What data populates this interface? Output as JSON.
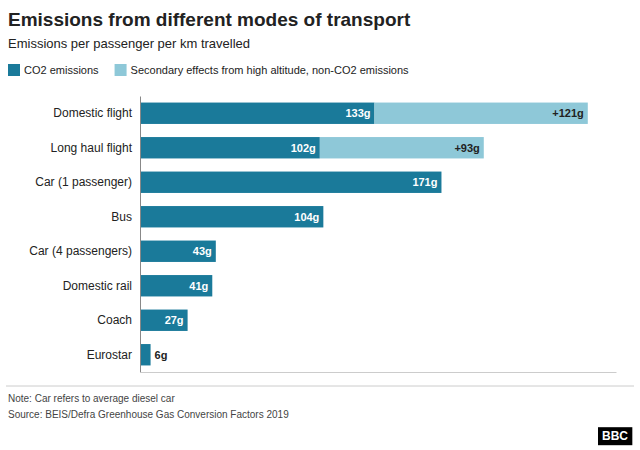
{
  "chart_data": {
    "type": "bar",
    "orientation": "horizontal",
    "stacked": true,
    "title": "Emissions from different modes of transport",
    "subtitle": "Emissions per passenger per km travelled",
    "categories": [
      "Domestic flight",
      "Long haul flight",
      "Car (1 passenger)",
      "Bus",
      "Car (4 passengers)",
      "Domestic rail",
      "Coach",
      "Eurostar"
    ],
    "series": [
      {
        "name": "CO2 emissions",
        "color": "#1a7a9a",
        "values": [
          133,
          102,
          171,
          104,
          43,
          41,
          27,
          6
        ],
        "value_labels": [
          "133g",
          "102g",
          "171g",
          "104g",
          "43g",
          "41g",
          "27g",
          "6g"
        ]
      },
      {
        "name": "Secondary effects from high altitude, non-CO2 emissions",
        "color": "#8ec8d8",
        "values": [
          121,
          93,
          0,
          0,
          0,
          0,
          0,
          0
        ],
        "value_labels": [
          "+121g",
          "+93g",
          null,
          null,
          null,
          null,
          null,
          null
        ]
      }
    ],
    "xlim": [
      0,
      270
    ],
    "grid": false,
    "legend": "top",
    "data_labels": true,
    "tick_labels": "y",
    "annotations": [
      "Note: Car refers to average diesel car",
      "Source: BEIS/Defra Greenhouse Gas Conversion Factors 2019",
      "BBC"
    ]
  }
}
